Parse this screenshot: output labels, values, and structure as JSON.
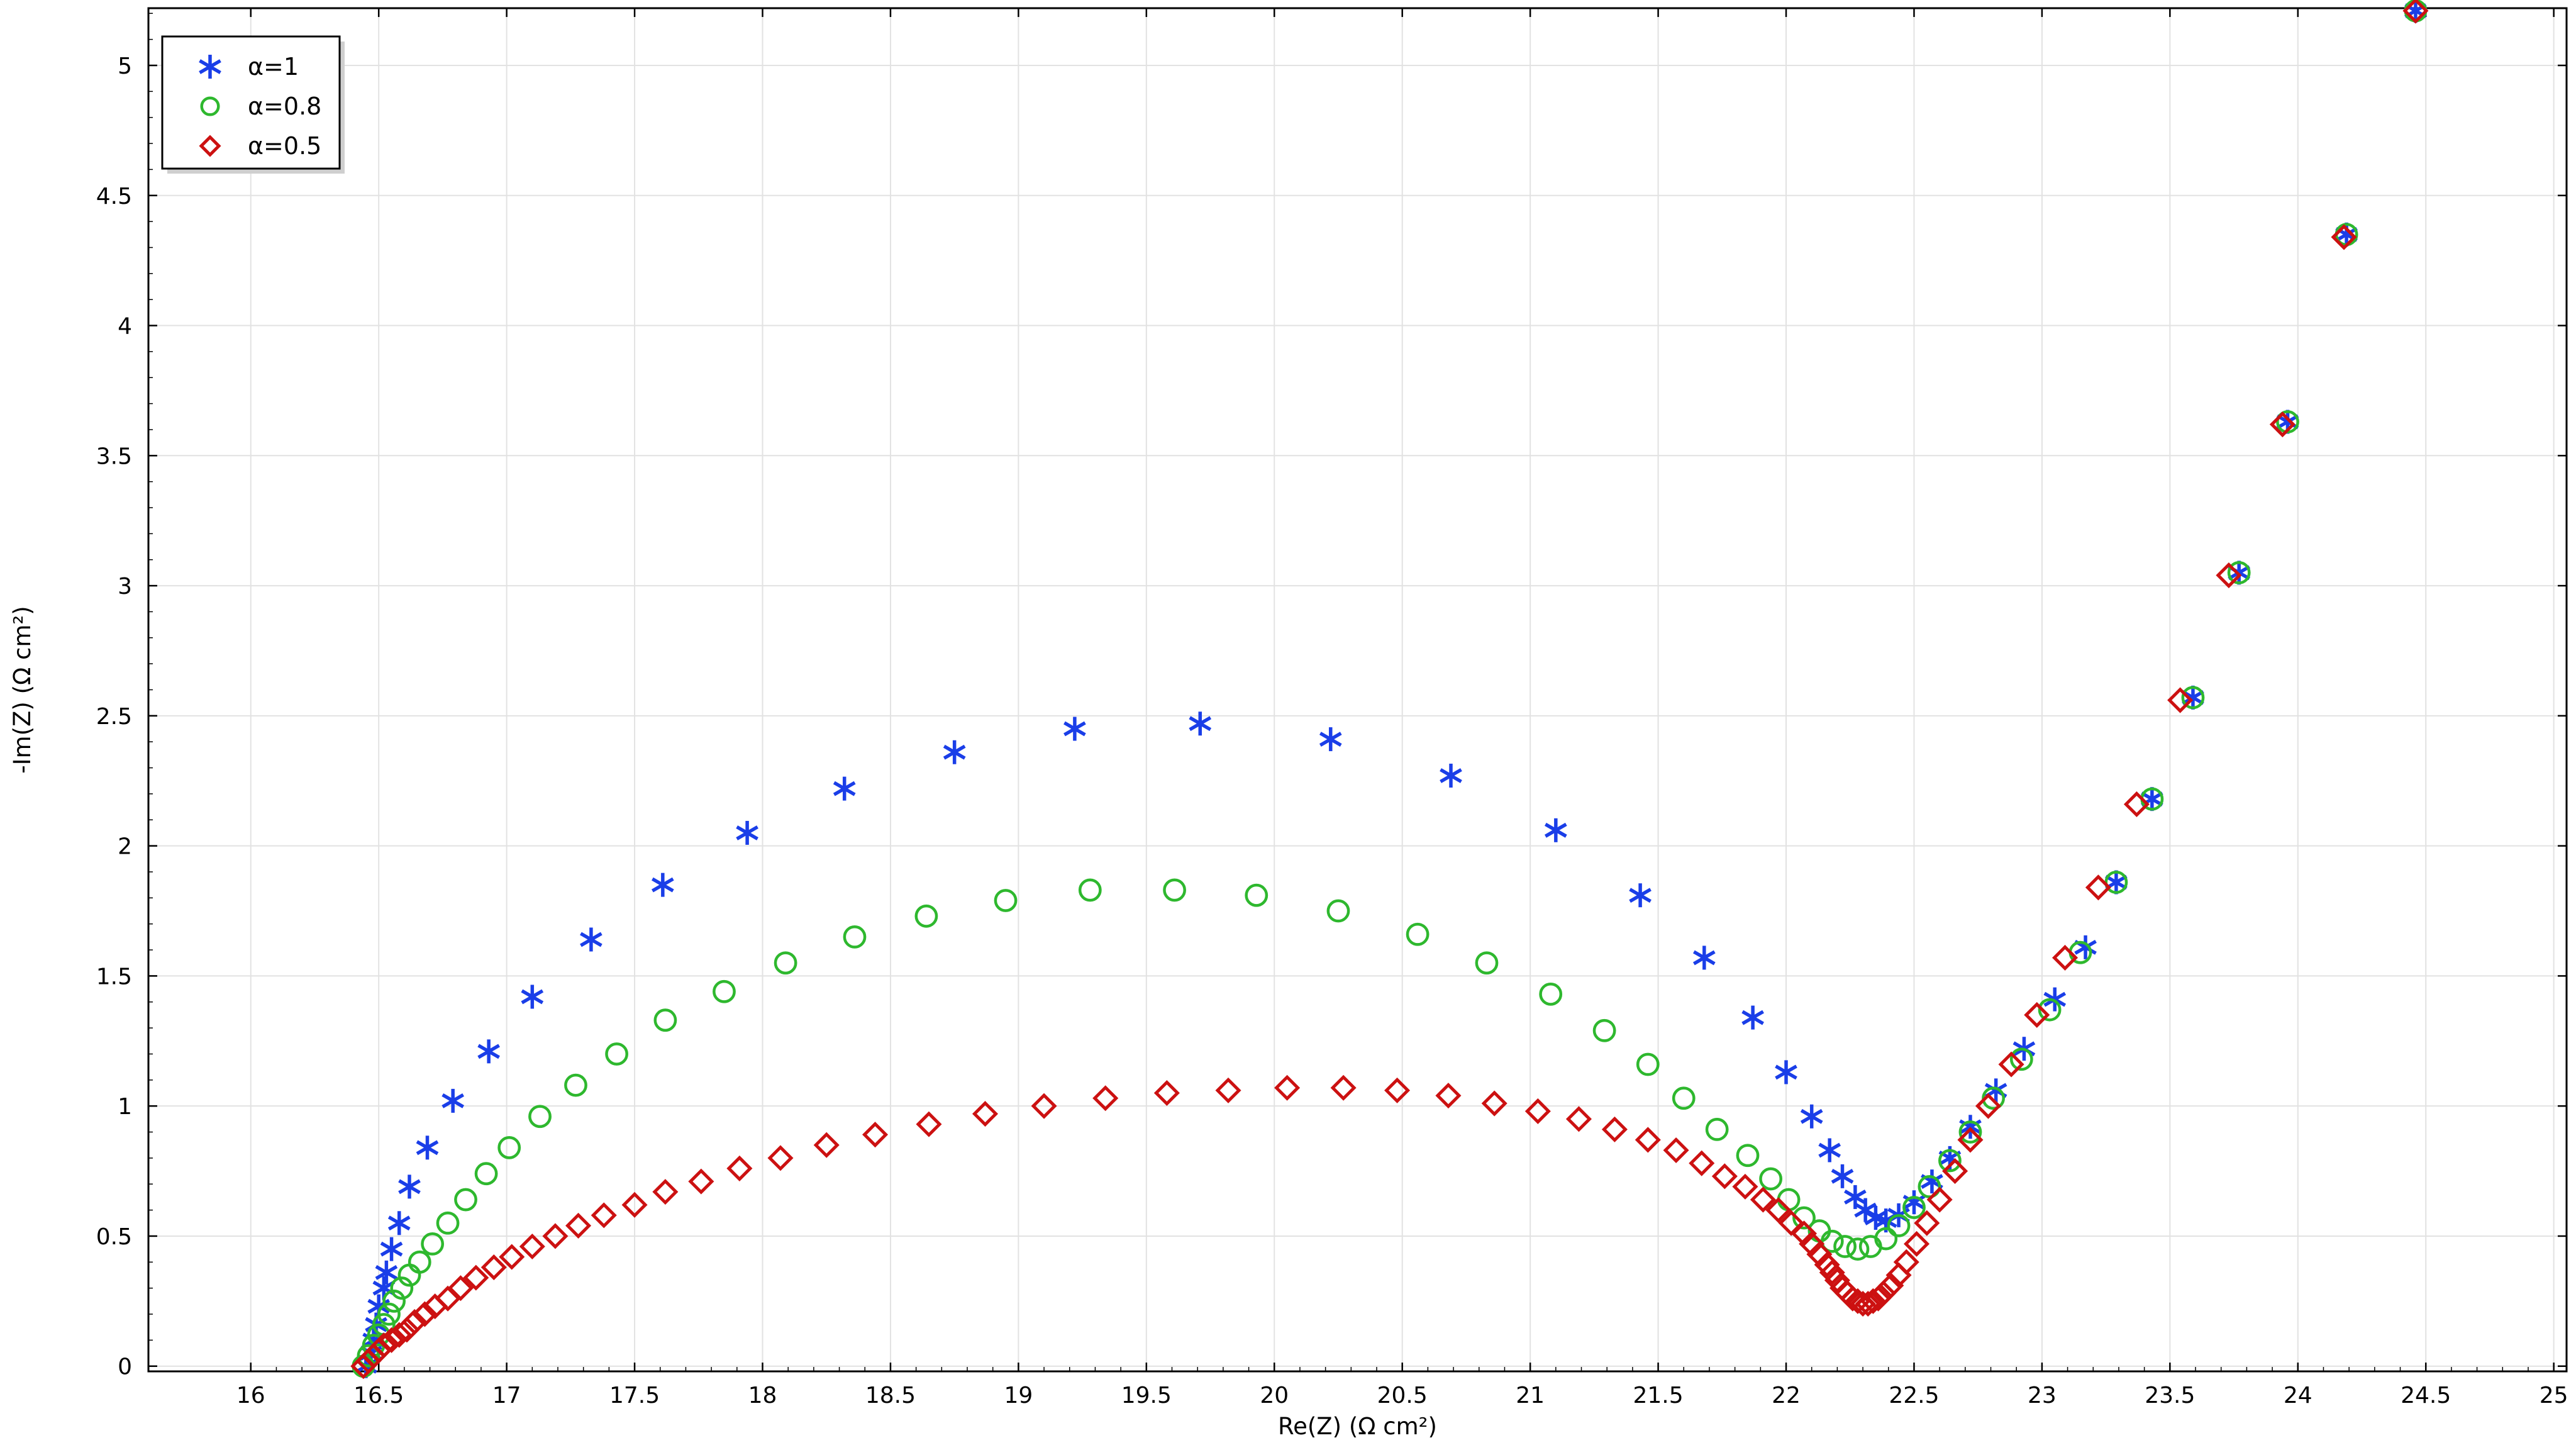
{
  "chart_data": {
    "type": "scatter",
    "title": "",
    "xlabel": "Re(Z) (Ω cm²)",
    "ylabel": "-Im(Z) (Ω cm²)",
    "xlim": [
      15.6,
      25.05
    ],
    "ylim": [
      -0.02,
      5.22
    ],
    "x_ticks": [
      16,
      16.5,
      17,
      17.5,
      18,
      18.5,
      19,
      19.5,
      20,
      20.5,
      21,
      21.5,
      22,
      22.5,
      23,
      23.5,
      24,
      24.5,
      25
    ],
    "y_ticks": [
      0,
      0.5,
      1,
      1.5,
      2,
      2.5,
      3,
      3.5,
      4,
      4.5,
      5
    ],
    "grid": true,
    "legend_position": "top-left",
    "series": [
      {
        "name": "α=1",
        "marker": "asterisk",
        "color": "#1a3ee8",
        "points": [
          [
            16.45,
            0.0
          ],
          [
            16.47,
            0.05
          ],
          [
            16.48,
            0.1
          ],
          [
            16.49,
            0.16
          ],
          [
            16.5,
            0.23
          ],
          [
            16.52,
            0.3
          ],
          [
            16.53,
            0.36
          ],
          [
            16.55,
            0.45
          ],
          [
            16.58,
            0.55
          ],
          [
            16.62,
            0.69
          ],
          [
            16.69,
            0.84
          ],
          [
            16.79,
            1.02
          ],
          [
            16.93,
            1.21
          ],
          [
            17.1,
            1.42
          ],
          [
            17.33,
            1.64
          ],
          [
            17.61,
            1.85
          ],
          [
            17.94,
            2.05
          ],
          [
            18.32,
            2.22
          ],
          [
            18.75,
            2.36
          ],
          [
            19.22,
            2.45
          ],
          [
            19.71,
            2.47
          ],
          [
            20.22,
            2.41
          ],
          [
            20.69,
            2.27
          ],
          [
            21.1,
            2.06
          ],
          [
            21.43,
            1.81
          ],
          [
            21.68,
            1.57
          ],
          [
            21.87,
            1.34
          ],
          [
            22.0,
            1.13
          ],
          [
            22.1,
            0.96
          ],
          [
            22.17,
            0.83
          ],
          [
            22.22,
            0.73
          ],
          [
            22.27,
            0.65
          ],
          [
            22.31,
            0.6
          ],
          [
            22.35,
            0.57
          ],
          [
            22.39,
            0.56
          ],
          [
            22.44,
            0.58
          ],
          [
            22.5,
            0.63
          ],
          [
            22.57,
            0.71
          ],
          [
            22.64,
            0.8
          ],
          [
            22.72,
            0.92
          ],
          [
            22.82,
            1.06
          ],
          [
            22.93,
            1.22
          ],
          [
            23.05,
            1.41
          ],
          [
            23.17,
            1.61
          ],
          [
            23.29,
            1.86
          ],
          [
            23.43,
            2.18
          ],
          [
            23.59,
            2.57
          ],
          [
            23.77,
            3.05
          ],
          [
            23.96,
            3.63
          ],
          [
            24.19,
            4.35
          ],
          [
            24.46,
            5.21
          ]
        ]
      },
      {
        "name": "α=0.8",
        "marker": "circle",
        "color": "#2eb82e",
        "points": [
          [
            16.44,
            0.0
          ],
          [
            16.46,
            0.04
          ],
          [
            16.48,
            0.08
          ],
          [
            16.5,
            0.12
          ],
          [
            16.52,
            0.16
          ],
          [
            16.54,
            0.2
          ],
          [
            16.56,
            0.25
          ],
          [
            16.59,
            0.3
          ],
          [
            16.62,
            0.35
          ],
          [
            16.66,
            0.4
          ],
          [
            16.71,
            0.47
          ],
          [
            16.77,
            0.55
          ],
          [
            16.84,
            0.64
          ],
          [
            16.92,
            0.74
          ],
          [
            17.01,
            0.84
          ],
          [
            17.13,
            0.96
          ],
          [
            17.27,
            1.08
          ],
          [
            17.43,
            1.2
          ],
          [
            17.62,
            1.33
          ],
          [
            17.85,
            1.44
          ],
          [
            18.09,
            1.55
          ],
          [
            18.36,
            1.65
          ],
          [
            18.64,
            1.73
          ],
          [
            18.95,
            1.79
          ],
          [
            19.28,
            1.83
          ],
          [
            19.61,
            1.83
          ],
          [
            19.93,
            1.81
          ],
          [
            20.25,
            1.75
          ],
          [
            20.56,
            1.66
          ],
          [
            20.83,
            1.55
          ],
          [
            21.08,
            1.43
          ],
          [
            21.29,
            1.29
          ],
          [
            21.46,
            1.16
          ],
          [
            21.6,
            1.03
          ],
          [
            21.73,
            0.91
          ],
          [
            21.85,
            0.81
          ],
          [
            21.94,
            0.72
          ],
          [
            22.01,
            0.64
          ],
          [
            22.07,
            0.57
          ],
          [
            22.13,
            0.52
          ],
          [
            22.18,
            0.48
          ],
          [
            22.23,
            0.46
          ],
          [
            22.28,
            0.45
          ],
          [
            22.33,
            0.46
          ],
          [
            22.39,
            0.49
          ],
          [
            22.44,
            0.54
          ],
          [
            22.5,
            0.61
          ],
          [
            22.56,
            0.69
          ],
          [
            22.64,
            0.79
          ],
          [
            22.72,
            0.9
          ],
          [
            22.81,
            1.03
          ],
          [
            22.92,
            1.18
          ],
          [
            23.03,
            1.37
          ],
          [
            23.15,
            1.59
          ],
          [
            23.29,
            1.86
          ],
          [
            23.43,
            2.18
          ],
          [
            23.59,
            2.57
          ],
          [
            23.77,
            3.05
          ],
          [
            23.96,
            3.63
          ],
          [
            24.19,
            4.35
          ],
          [
            24.46,
            5.21
          ]
        ]
      },
      {
        "name": "α=0.5",
        "marker": "diamond",
        "color": "#cc1111",
        "points": [
          [
            16.44,
            0.0
          ],
          [
            16.46,
            0.02
          ],
          [
            16.48,
            0.04
          ],
          [
            16.5,
            0.06
          ],
          [
            16.52,
            0.08
          ],
          [
            16.55,
            0.1
          ],
          [
            16.58,
            0.12
          ],
          [
            16.61,
            0.14
          ],
          [
            16.64,
            0.17
          ],
          [
            16.68,
            0.2
          ],
          [
            16.72,
            0.23
          ],
          [
            16.77,
            0.26
          ],
          [
            16.82,
            0.3
          ],
          [
            16.88,
            0.34
          ],
          [
            16.95,
            0.38
          ],
          [
            17.02,
            0.42
          ],
          [
            17.1,
            0.46
          ],
          [
            17.19,
            0.5
          ],
          [
            17.28,
            0.54
          ],
          [
            17.38,
            0.58
          ],
          [
            17.5,
            0.62
          ],
          [
            17.62,
            0.67
          ],
          [
            17.76,
            0.71
          ],
          [
            17.91,
            0.76
          ],
          [
            18.07,
            0.8
          ],
          [
            18.25,
            0.85
          ],
          [
            18.44,
            0.89
          ],
          [
            18.65,
            0.93
          ],
          [
            18.87,
            0.97
          ],
          [
            19.1,
            1.0
          ],
          [
            19.34,
            1.03
          ],
          [
            19.58,
            1.05
          ],
          [
            19.82,
            1.06
          ],
          [
            20.05,
            1.07
          ],
          [
            20.27,
            1.07
          ],
          [
            20.48,
            1.06
          ],
          [
            20.68,
            1.04
          ],
          [
            20.86,
            1.01
          ],
          [
            21.03,
            0.98
          ],
          [
            21.19,
            0.95
          ],
          [
            21.33,
            0.91
          ],
          [
            21.46,
            0.87
          ],
          [
            21.57,
            0.83
          ],
          [
            21.67,
            0.78
          ],
          [
            21.76,
            0.73
          ],
          [
            21.84,
            0.69
          ],
          [
            21.91,
            0.64
          ],
          [
            21.97,
            0.6
          ],
          [
            22.02,
            0.55
          ],
          [
            22.07,
            0.51
          ],
          [
            22.1,
            0.47
          ],
          [
            22.13,
            0.43
          ],
          [
            22.16,
            0.39
          ],
          [
            22.18,
            0.36
          ],
          [
            22.2,
            0.33
          ],
          [
            22.22,
            0.3
          ],
          [
            22.24,
            0.28
          ],
          [
            22.26,
            0.26
          ],
          [
            22.28,
            0.25
          ],
          [
            22.3,
            0.24
          ],
          [
            22.32,
            0.24
          ],
          [
            22.34,
            0.25
          ],
          [
            22.36,
            0.26
          ],
          [
            22.38,
            0.28
          ],
          [
            22.41,
            0.31
          ],
          [
            22.44,
            0.35
          ],
          [
            22.47,
            0.4
          ],
          [
            22.51,
            0.47
          ],
          [
            22.55,
            0.55
          ],
          [
            22.6,
            0.64
          ],
          [
            22.66,
            0.75
          ],
          [
            22.72,
            0.87
          ],
          [
            22.79,
            1.0
          ],
          [
            22.88,
            1.16
          ],
          [
            22.98,
            1.35
          ],
          [
            23.09,
            1.57
          ],
          [
            23.22,
            1.84
          ],
          [
            23.37,
            2.16
          ],
          [
            23.54,
            2.56
          ],
          [
            23.73,
            3.04
          ],
          [
            23.94,
            3.62
          ],
          [
            24.18,
            4.34
          ],
          [
            24.46,
            5.21
          ]
        ]
      }
    ]
  }
}
